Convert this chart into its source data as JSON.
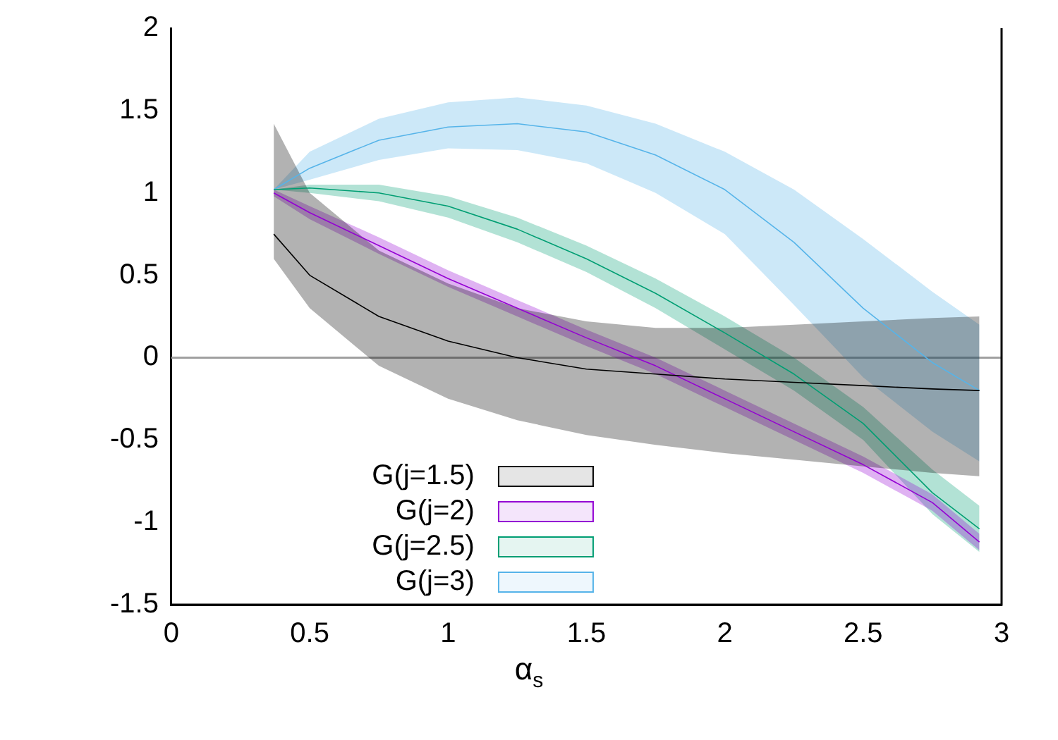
{
  "chart_data": {
    "type": "line",
    "xlabel": "α$_{s}$",
    "x": [
      0.37,
      0.5,
      0.75,
      1.0,
      1.25,
      1.5,
      1.75,
      2.0,
      2.25,
      2.5,
      2.75,
      2.92
    ],
    "series": [
      {
        "name": "G(j=1.5)",
        "color": "#000000",
        "values": [
          0.75,
          0.5,
          0.25,
          0.1,
          0.0,
          -0.07,
          -0.1,
          -0.13,
          -0.15,
          -0.17,
          -0.19,
          -0.2
        ],
        "lower": [
          0.6,
          0.3,
          -0.05,
          -0.25,
          -0.38,
          -0.47,
          -0.53,
          -0.58,
          -0.62,
          -0.66,
          -0.7,
          -0.72
        ],
        "upper": [
          1.42,
          1.0,
          0.65,
          0.45,
          0.3,
          0.22,
          0.18,
          0.18,
          0.2,
          0.22,
          0.24,
          0.25
        ]
      },
      {
        "name": "G(j=2)",
        "color": "#9400d3",
        "values": [
          1.0,
          0.88,
          0.68,
          0.48,
          0.3,
          0.12,
          -0.05,
          -0.25,
          -0.45,
          -0.65,
          -0.88,
          -1.12
        ],
        "lower": [
          0.98,
          0.84,
          0.63,
          0.43,
          0.25,
          0.07,
          -0.1,
          -0.3,
          -0.5,
          -0.7,
          -0.93,
          -1.17
        ],
        "upper": [
          1.02,
          0.92,
          0.73,
          0.53,
          0.35,
          0.17,
          0.0,
          -0.2,
          -0.4,
          -0.6,
          -0.83,
          -1.07
        ]
      },
      {
        "name": "G(j=2.5)",
        "color": "#009e73",
        "values": [
          1.02,
          1.03,
          1.0,
          0.92,
          0.78,
          0.6,
          0.39,
          0.15,
          -0.1,
          -0.4,
          -0.82,
          -1.04
        ],
        "lower": [
          1.02,
          1.0,
          0.95,
          0.85,
          0.7,
          0.52,
          0.3,
          0.05,
          -0.2,
          -0.5,
          -0.95,
          -1.18
        ],
        "upper": [
          1.02,
          1.05,
          1.05,
          0.98,
          0.85,
          0.68,
          0.48,
          0.25,
          0.0,
          -0.3,
          -0.68,
          -0.9
        ]
      },
      {
        "name": "G(j=3)",
        "color": "#56b4e9",
        "values": [
          1.02,
          1.15,
          1.32,
          1.4,
          1.42,
          1.37,
          1.23,
          1.02,
          0.7,
          0.3,
          -0.03,
          -0.2
        ],
        "lower": [
          1.02,
          1.08,
          1.2,
          1.27,
          1.26,
          1.18,
          1.0,
          0.75,
          0.32,
          -0.12,
          -0.45,
          -0.63
        ],
        "upper": [
          1.02,
          1.25,
          1.45,
          1.55,
          1.58,
          1.53,
          1.42,
          1.25,
          1.02,
          0.72,
          0.4,
          0.2
        ]
      }
    ],
    "xlim": [
      0,
      3
    ],
    "xticks": [
      0,
      0.5,
      1,
      1.5,
      2,
      2.5,
      3
    ],
    "ylim": [
      -1.5,
      2
    ],
    "yticks": [
      -1.5,
      -1,
      -0.5,
      0,
      0.5,
      1,
      1.5,
      2
    ],
    "ref_lines": [
      {
        "axis": "y",
        "value": 0,
        "color": "#a0a0a0"
      }
    ],
    "grid": false,
    "legend": "bottom left",
    "marker": "none",
    "line_style": "solid"
  }
}
